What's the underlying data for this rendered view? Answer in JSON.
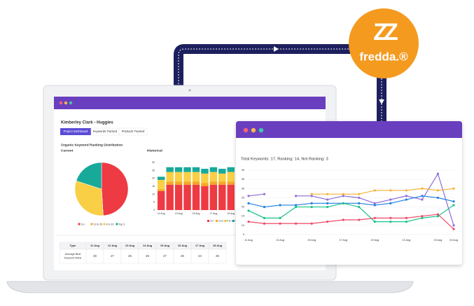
{
  "brand": {
    "name": "fredda.®",
    "mark": "ZZ"
  },
  "dashboard": {
    "title": "Kimberley Clark - Huggies",
    "tabs": [
      "Project Dashboard",
      "Keywords Tracked",
      "Products Tracked"
    ],
    "section_title": "Organic Keyword Ranking Distribution",
    "current": {
      "type": "pie",
      "title": "Current",
      "categories": [
        "11+",
        "11 to 20",
        "4 to 10",
        "Top 3"
      ],
      "colors": [
        "#ee3a43",
        "#f5a623",
        "#f8cf45",
        "#17a99a"
      ],
      "values": [
        49,
        0,
        31,
        20
      ]
    },
    "historical": {
      "type": "bar",
      "stacked": true,
      "title": "Historical",
      "categories": [
        "11 Aug",
        null,
        "13 Aug",
        null,
        "15 Aug",
        null,
        "17 Aug",
        null,
        "19 Aug"
      ],
      "ylim": [
        0,
        30
      ],
      "yticks": [
        0,
        5,
        10,
        15,
        20,
        25,
        30
      ],
      "series": [
        {
          "name": "11+",
          "color": "#ee3a43",
          "values": [
            12,
            16,
            16,
            16,
            16,
            15,
            16,
            16,
            16
          ]
        },
        {
          "name": "11 to 20",
          "color": "#f5a623",
          "values": [
            1,
            2,
            2,
            2,
            2,
            2,
            2,
            2,
            2
          ]
        },
        {
          "name": "4 to 10",
          "color": "#f8cf45",
          "values": [
            6,
            6,
            6,
            6,
            6,
            6,
            6,
            5,
            6
          ]
        },
        {
          "name": "Top 3",
          "color": "#17a99a",
          "values": [
            2,
            3,
            3,
            3,
            3,
            3,
            3,
            3,
            3
          ]
        }
      ]
    },
    "table": {
      "header": [
        "Type",
        "11 Aug",
        "12 Aug",
        "13 Aug",
        "14 Aug",
        "15 Aug",
        "16 Aug",
        "17 Aug",
        "18 Aug"
      ],
      "rows": [
        [
          "Average Best Keyword Rank",
          "29",
          "27",
          "26",
          "25",
          "27",
          "26",
          "24",
          "26"
        ]
      ]
    }
  },
  "keywords": {
    "type": "line",
    "title": "Total Keywords: 17, Ranking: 14, Not Ranking: 3",
    "categories": [
      "11 Aug",
      null,
      "13 Aug",
      null,
      "15 Aug",
      null,
      "17 Aug",
      null,
      "19 Aug",
      null,
      "21 Aug",
      null,
      "23 Aug",
      "24 Aug"
    ],
    "ylim": [
      5,
      40
    ],
    "yticks": [
      5,
      10,
      15,
      20,
      25,
      30,
      35,
      40
    ],
    "grid": true,
    "series": [
      {
        "color": "#8e6cd8",
        "values": [
          26,
          27,
          null,
          26,
          26,
          24,
          26,
          25,
          22,
          24,
          26,
          24,
          38,
          10
        ]
      },
      {
        "color": "#1f7fe0",
        "values": [
          22,
          20,
          21,
          21,
          22,
          22,
          22,
          22,
          21,
          22,
          24,
          26,
          25,
          23
        ]
      },
      {
        "color": "#f5b335",
        "values": [
          null,
          null,
          null,
          null,
          27,
          27,
          27,
          27,
          29,
          29,
          29,
          30,
          29,
          30
        ]
      },
      {
        "color": "#19c48a",
        "values": [
          18,
          14,
          14,
          20,
          20,
          20,
          22,
          20,
          12,
          12,
          12,
          14,
          15,
          21
        ]
      },
      {
        "color": "#ee4a6a",
        "values": [
          12,
          11,
          11,
          11,
          11,
          12,
          13,
          13,
          14,
          14,
          14,
          15,
          16,
          8
        ]
      }
    ]
  }
}
